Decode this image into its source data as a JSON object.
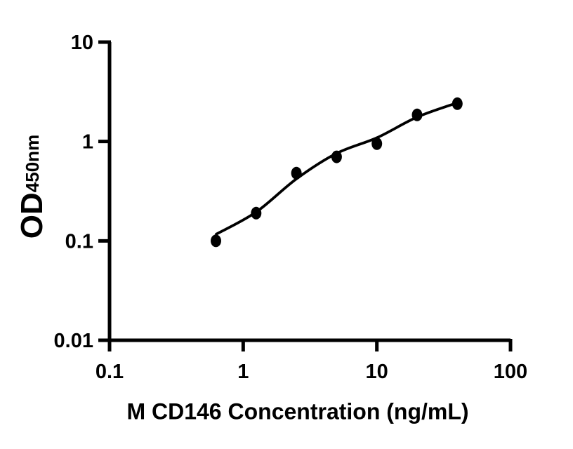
{
  "chart_data": {
    "type": "scatter",
    "title": "",
    "xlabel": "M CD146 Concentration (ng/mL)",
    "ylabel_main": "OD",
    "ylabel_sub": "450nm",
    "x_scale": "log",
    "y_scale": "log",
    "xlim": [
      0.1,
      100
    ],
    "ylim": [
      0.01,
      10
    ],
    "grid": "off",
    "legend": "none",
    "background": "#ffffff",
    "axis_color": "#000000",
    "x_ticks": [
      {
        "value": 0.1,
        "label": "0.1"
      },
      {
        "value": 1,
        "label": "1"
      },
      {
        "value": 10,
        "label": "10"
      },
      {
        "value": 100,
        "label": "100"
      }
    ],
    "y_ticks": [
      {
        "value": 0.01,
        "label": "0.01"
      },
      {
        "value": 0.1,
        "label": "0.1"
      },
      {
        "value": 1,
        "label": "1"
      },
      {
        "value": 10,
        "label": "10"
      }
    ],
    "series": [
      {
        "name": "standard-curve-points",
        "marker": "filled-circle",
        "color": "#000000",
        "points": [
          {
            "x": 0.625,
            "y": 0.1
          },
          {
            "x": 1.25,
            "y": 0.19
          },
          {
            "x": 2.5,
            "y": 0.48
          },
          {
            "x": 5,
            "y": 0.7
          },
          {
            "x": 10,
            "y": 0.95
          },
          {
            "x": 20,
            "y": 1.85
          },
          {
            "x": 40,
            "y": 2.4
          }
        ]
      }
    ],
    "fit_curve": {
      "name": "4pl-fit-line",
      "color": "#000000",
      "points": [
        {
          "x": 0.63,
          "y": 0.117
        },
        {
          "x": 1.25,
          "y": 0.195
        },
        {
          "x": 2.5,
          "y": 0.42
        },
        {
          "x": 5,
          "y": 0.76
        },
        {
          "x": 10,
          "y": 1.09
        },
        {
          "x": 20,
          "y": 1.76
        },
        {
          "x": 40,
          "y": 2.45
        }
      ]
    }
  }
}
